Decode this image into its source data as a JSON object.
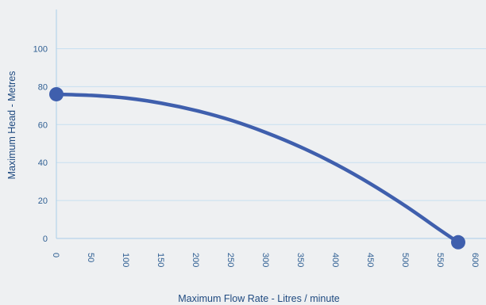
{
  "chart_data": {
    "type": "line",
    "title": "",
    "xlabel": "Maximum Flow Rate - Litres / minute",
    "ylabel": "Maximum Head - Metres",
    "xlim": [
      0,
      600
    ],
    "ylim": [
      0,
      115
    ],
    "x_ticks": [
      "0",
      "50",
      "100",
      "150",
      "200",
      "250",
      "300",
      "350",
      "400",
      "450",
      "500",
      "550",
      "600"
    ],
    "y_ticks": [
      "0",
      "20",
      "40",
      "60",
      "80",
      "100"
    ],
    "grid": "horizontal",
    "legend": "none",
    "series": [
      {
        "x": [
          0,
          50,
          100,
          150,
          200,
          250,
          300,
          350,
          400,
          450,
          500,
          550,
          575
        ],
        "y": [
          76,
          75.4,
          74,
          71.3,
          67.4,
          62.3,
          55.8,
          48.1,
          39.1,
          28.7,
          17,
          4.2,
          -2
        ],
        "color": "#3f5fad"
      }
    ],
    "endpoints": [
      {
        "x": 0,
        "y": 76
      },
      {
        "x": 575,
        "y": -2
      }
    ],
    "colors": {
      "line": "#3f5fad",
      "grid": "#c7dff0",
      "axis": "#b6d4ea",
      "tick_text": "#2f5f93",
      "label_text": "#1f4a80",
      "background": "#eef0f2"
    }
  }
}
